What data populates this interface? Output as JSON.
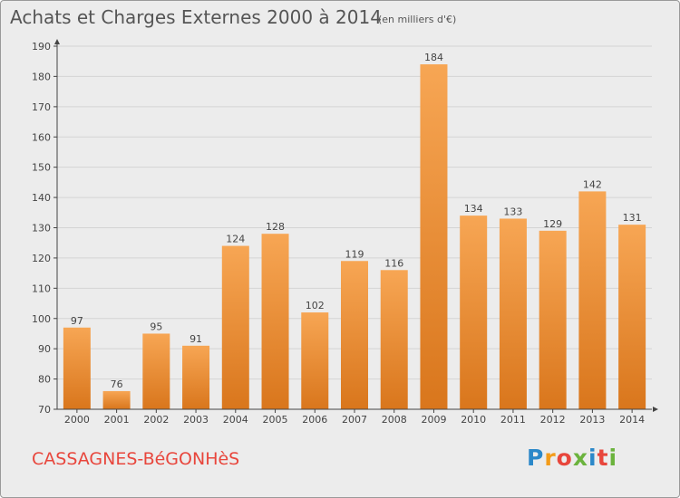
{
  "chart_data": {
    "type": "bar",
    "title": "Achats et Charges Externes 2000 à 2014",
    "subtitle": "(en milliers d'€)",
    "categories": [
      "2000",
      "2001",
      "2002",
      "2003",
      "2004",
      "2005",
      "2006",
      "2007",
      "2008",
      "2009",
      "2010",
      "2011",
      "2012",
      "2013",
      "2014"
    ],
    "values": [
      97,
      76,
      95,
      91,
      124,
      128,
      102,
      119,
      116,
      184,
      134,
      133,
      129,
      142,
      131
    ],
    "ylim": [
      70,
      190
    ],
    "yticks": [
      70,
      80,
      90,
      100,
      110,
      120,
      130,
      140,
      150,
      160,
      170,
      180,
      190
    ],
    "grid": true,
    "colors": {
      "bar_light": "#f7a654",
      "bar_dark": "#d9761c",
      "grid": "#d4d4d4",
      "axis": "#444444",
      "text": "#444444"
    }
  },
  "footer": {
    "commune": "CASSAGNES-BéGONHèS",
    "commune_color": "#e8463c"
  },
  "logo": {
    "text": "Proxiti",
    "letter_colors": [
      "#2b88c9",
      "#f39c1a",
      "#e8463c",
      "#6bb33d",
      "#2b88c9",
      "#e8463c",
      "#6bb33d"
    ]
  }
}
